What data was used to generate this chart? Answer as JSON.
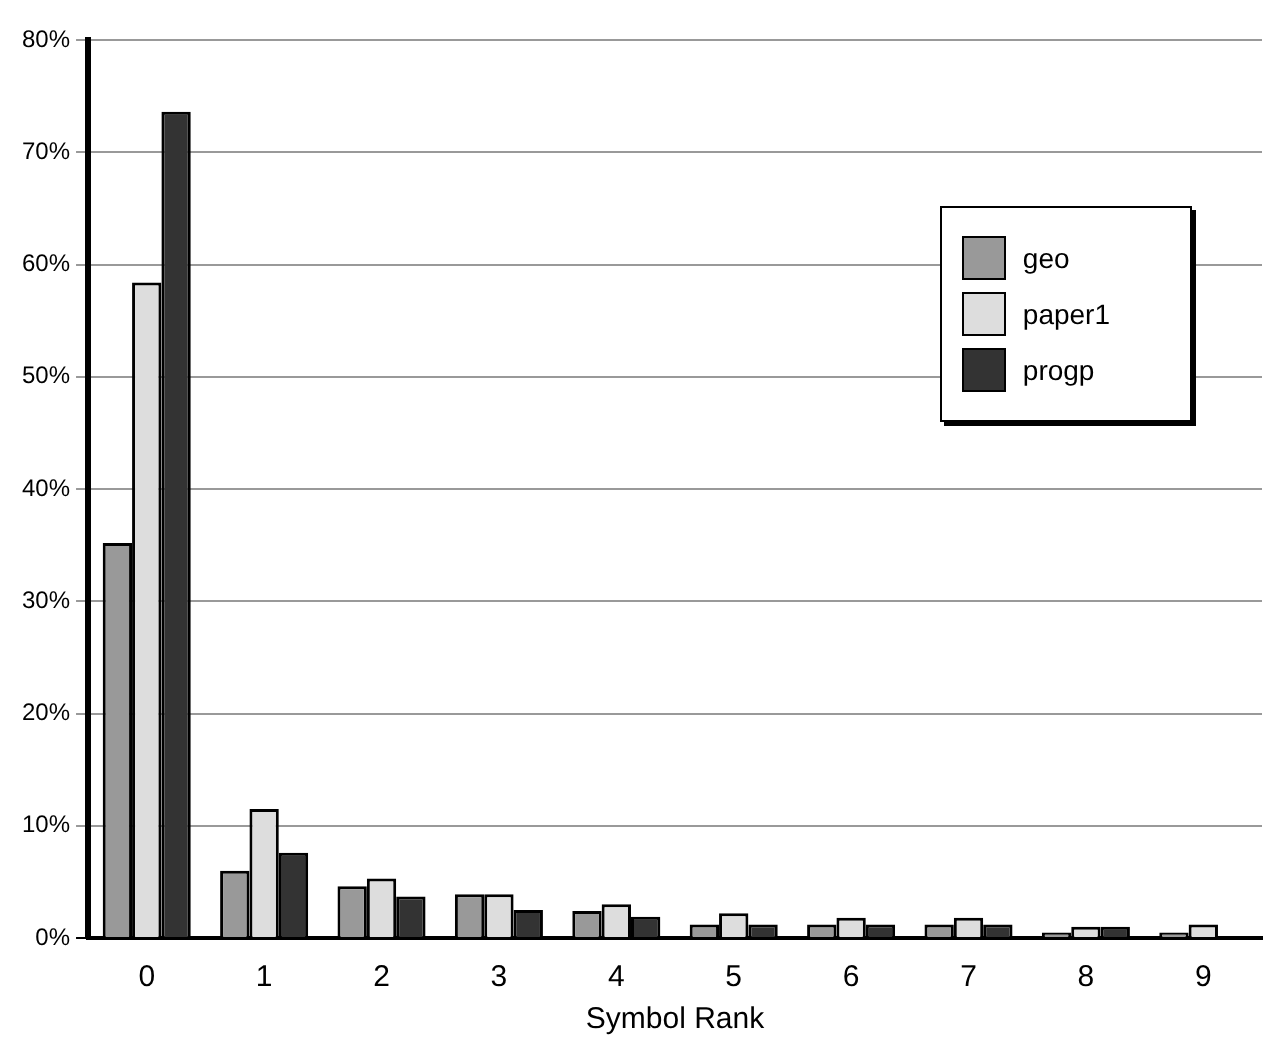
{
  "chart_data": {
    "type": "bar",
    "xlabel": "Symbol Rank",
    "categories": [
      "0",
      "1",
      "2",
      "3",
      "4",
      "5",
      "6",
      "7",
      "8",
      "9"
    ],
    "series": [
      {
        "name": "geo",
        "color": "#999999",
        "values": [
          35.2,
          6.0,
          4.6,
          3.9,
          2.4,
          1.2,
          1.2,
          1.2,
          0.5,
          0.5
        ]
      },
      {
        "name": "paper1",
        "color": "#dddddd",
        "values": [
          58.4,
          11.5,
          5.3,
          3.9,
          3.0,
          2.2,
          1.8,
          1.8,
          1.0,
          1.2
        ]
      },
      {
        "name": "progp",
        "color": "#333333",
        "values": [
          73.6,
          7.6,
          3.7,
          2.5,
          1.9,
          1.2,
          1.2,
          1.2,
          1.0,
          null
        ]
      }
    ],
    "ylim": [
      0,
      80
    ],
    "yticks": [
      {
        "value": 0,
        "label": "0%"
      },
      {
        "value": 10,
        "label": "10%"
      },
      {
        "value": 20,
        "label": "20%"
      },
      {
        "value": 30,
        "label": "30%"
      },
      {
        "value": 40,
        "label": "40%"
      },
      {
        "value": 50,
        "label": "50%"
      },
      {
        "value": 60,
        "label": "60%"
      },
      {
        "value": 70,
        "label": "70%"
      },
      {
        "value": 80,
        "label": "80%"
      }
    ],
    "grid": "y",
    "legend": "top right"
  }
}
